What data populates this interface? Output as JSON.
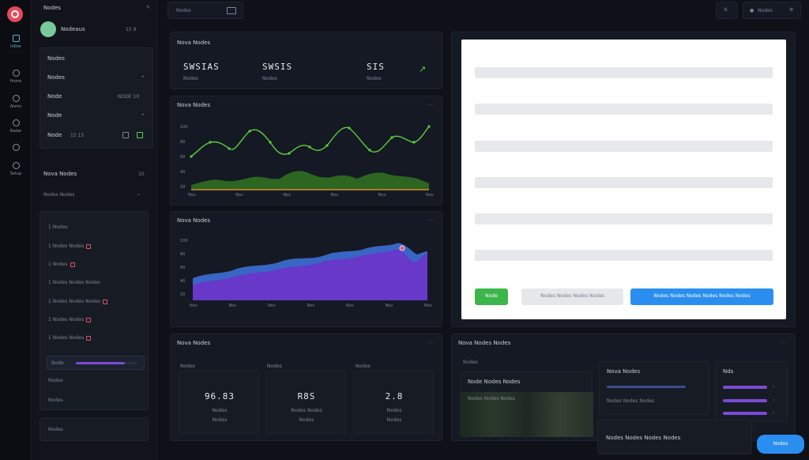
{
  "rail": {
    "items": [
      {
        "label": "Inbox"
      },
      {
        "label": "Home"
      },
      {
        "label": "Alerts"
      },
      {
        "label": "Radar"
      },
      {
        "label": ""
      },
      {
        "label": "Setup"
      }
    ]
  },
  "sidebar": {
    "title": "Nodes",
    "user_name": "Nodeaus",
    "user_meta": "15 9",
    "menu": [
      {
        "label": "Nodes",
        "value": ""
      },
      {
        "label": "Nodes",
        "value": "•"
      },
      {
        "label": "Node",
        "value": "NODE 10"
      },
      {
        "label": "Node",
        "value": "•"
      },
      {
        "label": "Node",
        "value": "15  15"
      }
    ],
    "section_title": "Nova Nodes",
    "section_count": "10",
    "filter_label": "Nodes Nodes",
    "list": [
      {
        "label": "1 Nodes"
      },
      {
        "label": "1 Nodes Nodes"
      },
      {
        "label": "1 Nodes"
      },
      {
        "label": "1 Nodes Nodes Nodes"
      },
      {
        "label": "1 Nodes Nodes Nodes"
      },
      {
        "label": "1 Nodes Nodes"
      },
      {
        "label": "1 Nodes Nodes"
      }
    ],
    "progress_label": "Node",
    "progress_value": 0.8,
    "tail_label": "Nodes",
    "tail2_label": "Nodes",
    "footer_label": "Nodes"
  },
  "topbar": {
    "left_label": "Nodes",
    "right_label": "Nodes"
  },
  "stats": {
    "title": "Nova Nodes",
    "items": [
      {
        "value": "SWSIAS",
        "label": "Nodes"
      },
      {
        "value": "SWSIS",
        "label": "Nodes"
      },
      {
        "value": "SIS",
        "label": "Nodes"
      }
    ]
  },
  "line_chart": {
    "title": "Nova Nodes",
    "y_ticks": [
      "100",
      "80",
      "60",
      "40",
      "20"
    ],
    "x_ticks": [
      "Nov",
      "Nov",
      "Nov",
      "Nov",
      "Nov",
      "Nov"
    ],
    "colors": {
      "line": "#5ccf3c",
      "fill": "#2d6a22",
      "base": "#d58a2c"
    }
  },
  "area_chart": {
    "title": "Nova Nodes",
    "y_ticks": [
      "100",
      "80",
      "60",
      "40",
      "20"
    ],
    "x_ticks": [
      "Nov",
      "Nov",
      "Nov",
      "Nov",
      "Nov",
      "Nov",
      "Nov"
    ],
    "colors": {
      "back": "#3d6fd6",
      "front": "#6a36c9"
    }
  },
  "preview": {
    "button_green": "Node",
    "button_gray": "Nodes Nodes Nodes Nodes",
    "button_blue": "Nodes Nodes Nodes Nodes Nodes Nodes"
  },
  "bottom_left": {
    "title": "Nova Nodes",
    "cards": [
      {
        "label": "Nodes",
        "value": "96.83",
        "sub": "Nodes",
        "sub2": "Nodes"
      },
      {
        "label": "Nodes",
        "value": "R8S",
        "sub": "Nodes Nodes",
        "sub2": "Nodes"
      },
      {
        "label": "Nodes",
        "value": "2.8",
        "sub": "Nodes",
        "sub2": "Nodes"
      }
    ]
  },
  "bottom_right": {
    "title": "Nova Nodes Nodes",
    "tab_label": "Nodes",
    "list_title": "Node Nodes Nodes",
    "list_sub": "Nodes Nodes Nodes",
    "card_a_title": "Nova Nodes",
    "card_a_sub": "Nodes Nodes Nodes",
    "card_b_title": "Nds",
    "footer_text": "Nodes Nodes Nodes Nodes",
    "action_button": "Nodes"
  }
}
